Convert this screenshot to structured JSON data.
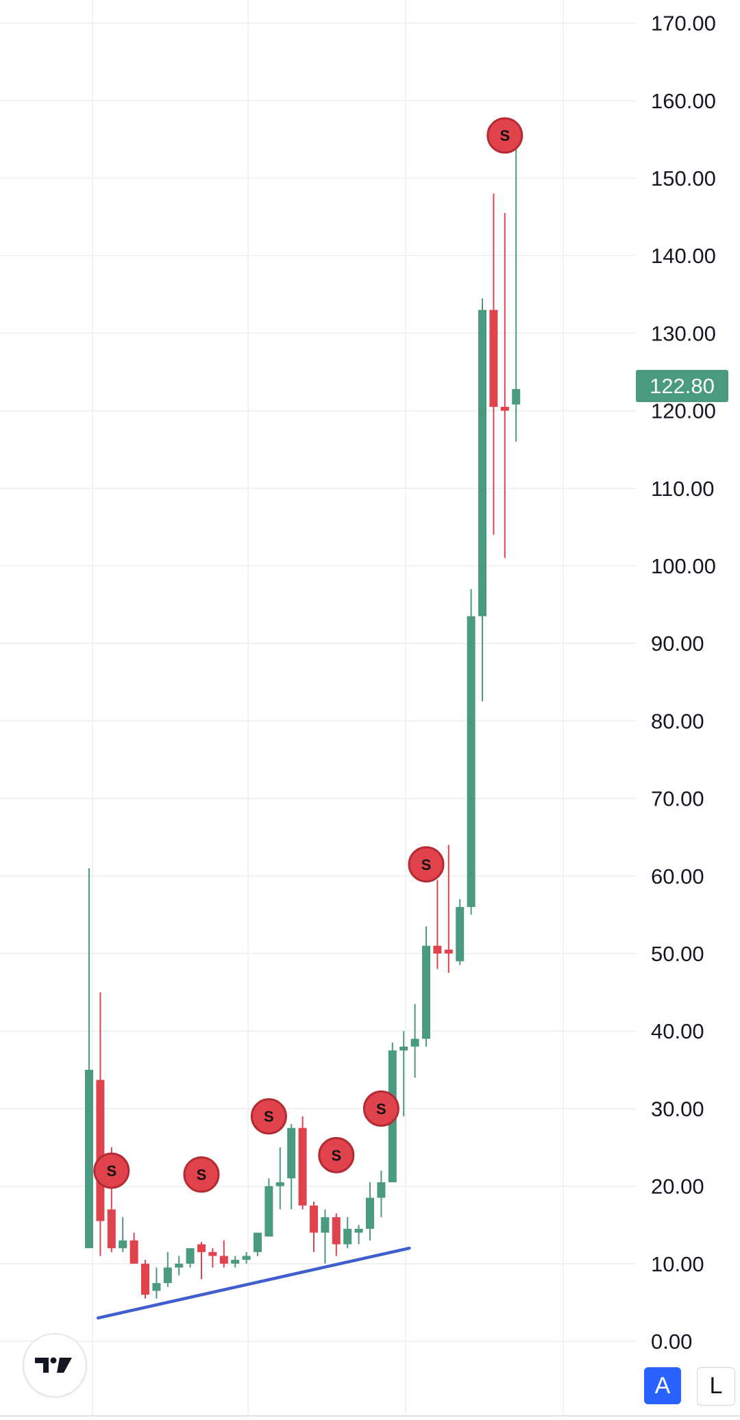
{
  "colors": {
    "up": "#4a9a80",
    "down": "#e0434c",
    "marker_fill": "#e0434c",
    "marker_stroke": "#b32a33",
    "trendline": "#3f5fcf",
    "grid": "#eeeeee",
    "axis_text": "#131722",
    "price_tag": "#4a9a80",
    "scale_button_active": "#2962ff"
  },
  "current_price": "122.80",
  "scale_buttons": {
    "auto": "A",
    "log": "L"
  },
  "icons": {
    "logo": "tradingview-logo-icon"
  },
  "chart_data": {
    "type": "candlestick",
    "y_ticks": [
      "170.00",
      "160.00",
      "150.00",
      "140.00",
      "130.00",
      "120.00",
      "110.00",
      "100.00",
      "90.00",
      "80.00",
      "70.00",
      "60.00",
      "50.00",
      "40.00",
      "30.00",
      "20.00",
      "10.00",
      "0.00"
    ],
    "ylim": [
      0,
      170
    ],
    "grid": true,
    "candles": [
      {
        "o": 12.0,
        "h": 61.0,
        "l": 12.0,
        "c": 35.0
      },
      {
        "o": 33.7,
        "h": 45.0,
        "l": 11.0,
        "c": 15.5
      },
      {
        "o": 17.0,
        "h": 25.0,
        "l": 11.5,
        "c": 12.0
      },
      {
        "o": 12.0,
        "h": 16.0,
        "l": 11.5,
        "c": 13.0
      },
      {
        "o": 13.0,
        "h": 14.0,
        "l": 10.0,
        "c": 10.0
      },
      {
        "o": 10.0,
        "h": 10.5,
        "l": 5.5,
        "c": 6.0
      },
      {
        "o": 6.5,
        "h": 9.5,
        "l": 5.5,
        "c": 7.5
      },
      {
        "o": 7.5,
        "h": 11.5,
        "l": 7.0,
        "c": 9.5
      },
      {
        "o": 9.5,
        "h": 11.0,
        "l": 8.5,
        "c": 10.0
      },
      {
        "o": 10.0,
        "h": 12.0,
        "l": 9.5,
        "c": 12.0
      },
      {
        "o": 12.5,
        "h": 12.8,
        "l": 8.0,
        "c": 11.5
      },
      {
        "o": 11.5,
        "h": 12.0,
        "l": 9.5,
        "c": 11.0
      },
      {
        "o": 11.0,
        "h": 13.0,
        "l": 9.5,
        "c": 10.0
      },
      {
        "o": 10.0,
        "h": 11.0,
        "l": 9.5,
        "c": 10.5
      },
      {
        "o": 10.5,
        "h": 11.5,
        "l": 10.0,
        "c": 11.0
      },
      {
        "o": 11.5,
        "h": 14.0,
        "l": 11.0,
        "c": 14.0
      },
      {
        "o": 13.5,
        "h": 21.0,
        "l": 13.5,
        "c": 20.0
      },
      {
        "o": 20.0,
        "h": 25.0,
        "l": 17.0,
        "c": 20.5
      },
      {
        "o": 21.0,
        "h": 28.0,
        "l": 17.0,
        "c": 27.5
      },
      {
        "o": 27.5,
        "h": 29.0,
        "l": 17.0,
        "c": 17.5
      },
      {
        "o": 17.5,
        "h": 18.0,
        "l": 11.5,
        "c": 14.0
      },
      {
        "o": 14.0,
        "h": 17.0,
        "l": 10.0,
        "c": 16.0
      },
      {
        "o": 16.0,
        "h": 16.5,
        "l": 11.0,
        "c": 12.5
      },
      {
        "o": 12.5,
        "h": 16.0,
        "l": 12.0,
        "c": 14.5
      },
      {
        "o": 14.0,
        "h": 15.0,
        "l": 12.5,
        "c": 14.5
      },
      {
        "o": 14.5,
        "h": 20.5,
        "l": 13.0,
        "c": 18.5
      },
      {
        "o": 18.5,
        "h": 22.0,
        "l": 16.0,
        "c": 20.5
      },
      {
        "o": 20.5,
        "h": 38.5,
        "l": 20.5,
        "c": 37.5
      },
      {
        "o": 37.5,
        "h": 40.0,
        "l": 29.0,
        "c": 38.0
      },
      {
        "o": 38.0,
        "h": 43.5,
        "l": 34.0,
        "c": 39.0
      },
      {
        "o": 39.0,
        "h": 53.5,
        "l": 38.0,
        "c": 51.0
      },
      {
        "o": 51.0,
        "h": 59.5,
        "l": 48.0,
        "c": 50.0
      },
      {
        "o": 50.5,
        "h": 64.0,
        "l": 47.5,
        "c": 50.0
      },
      {
        "o": 49.0,
        "h": 57.0,
        "l": 48.5,
        "c": 56.0
      },
      {
        "o": 56.0,
        "h": 97.0,
        "l": 55.0,
        "c": 93.5
      },
      {
        "o": 93.5,
        "h": 134.5,
        "l": 82.5,
        "c": 133.0
      },
      {
        "o": 133.0,
        "h": 148.0,
        "l": 104.0,
        "c": 120.5
      },
      {
        "o": 120.5,
        "h": 145.5,
        "l": 101.0,
        "c": 120.0
      },
      {
        "o": 120.8,
        "h": 154.0,
        "l": 116.0,
        "c": 122.8
      }
    ],
    "sell_marker_label": "S",
    "sell_markers": [
      {
        "candle": 2,
        "price": 22.0
      },
      {
        "candle": 10,
        "price": 21.5
      },
      {
        "candle": 16,
        "price": 29.0
      },
      {
        "candle": 22,
        "price": 24.0
      },
      {
        "candle": 26,
        "price": 30.0
      },
      {
        "candle": 30,
        "price": 61.5
      },
      {
        "candle": 37,
        "price": 155.5
      }
    ],
    "trendline": [
      {
        "candle": 0.8,
        "price": 3.0
      },
      {
        "candle": 28.5,
        "price": 12.0
      }
    ]
  }
}
